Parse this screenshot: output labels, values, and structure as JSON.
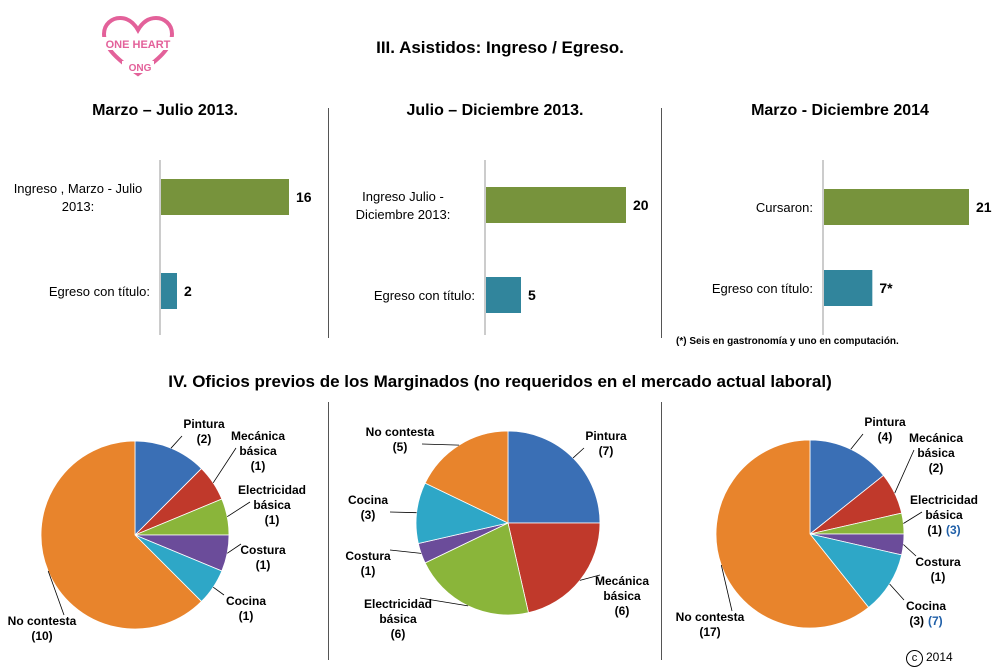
{
  "logo": {
    "line1": "ONE HEART",
    "line2": "ONG",
    "color": "#e3619a"
  },
  "section3_title": "III. Asistidos: Ingreso / Egreso.",
  "section4_title": "IV. Oficios previos de los Marginados (no requeridos en el mercado actual laboral)",
  "footnote": "(*) Seis en gastronomía y uno en computación.",
  "copyright": {
    "symbol": "c",
    "year": "2014"
  },
  "colors": {
    "green": "#77933c",
    "teal": "#31859c",
    "blue": "#3a6fb5",
    "red": "#c0392b",
    "olive": "#8ab53a",
    "purple": "#6b4c9a",
    "cyan": "#2ea7c7",
    "orange": "#e8842c",
    "highlight": "#1f5fa8"
  },
  "chart_data": [
    {
      "type": "bar",
      "orientation": "horizontal",
      "title": "Marzo – Julio  2013.",
      "categories": [
        "Ingreso , Marzo - Julio 2013:",
        "Egreso con título:"
      ],
      "values": [
        16,
        2
      ],
      "value_labels": [
        "16",
        "2"
      ],
      "xlim": [
        0,
        16
      ]
    },
    {
      "type": "bar",
      "orientation": "horizontal",
      "title": "Julio – Diciembre 2013.",
      "categories": [
        "Ingreso Julio - Diciembre 2013:",
        "Egreso con título:"
      ],
      "values": [
        20,
        5
      ],
      "value_labels": [
        "20",
        "5"
      ],
      "xlim": [
        0,
        20
      ]
    },
    {
      "type": "bar",
      "orientation": "horizontal",
      "title": "Marzo - Diciembre 2014",
      "categories": [
        "Cursaron:",
        "Egreso con título:"
      ],
      "values": [
        21,
        7
      ],
      "value_labels": [
        "21",
        "7*"
      ],
      "xlim": [
        0,
        21
      ]
    },
    {
      "type": "pie",
      "slices": [
        {
          "name": "Pintura",
          "value": 2,
          "label": "(2)"
        },
        {
          "name": "Mecánica básica",
          "value": 1,
          "label": "(1)"
        },
        {
          "name": "Electricidad básica",
          "value": 1,
          "label": "(1)"
        },
        {
          "name": "Costura",
          "value": 1,
          "label": "(1)"
        },
        {
          "name": "Cocina",
          "value": 1,
          "label": "(1)"
        },
        {
          "name": "No contesta",
          "value": 10,
          "label": "(10)"
        }
      ]
    },
    {
      "type": "pie",
      "slices": [
        {
          "name": "Pintura",
          "value": 7,
          "label": "(7)"
        },
        {
          "name": "Mecánica básica",
          "value": 6,
          "label": "(6)"
        },
        {
          "name": "Electricidad básica",
          "value": 6,
          "label": "(6)"
        },
        {
          "name": "Costura",
          "value": 1,
          "label": "(1)"
        },
        {
          "name": "Cocina",
          "value": 3,
          "label": "(3)"
        },
        {
          "name": "No contesta",
          "value": 5,
          "label": "(5)"
        }
      ]
    },
    {
      "type": "pie",
      "slices": [
        {
          "name": "Pintura",
          "value": 4,
          "label": "(4)"
        },
        {
          "name": "Mecánica básica",
          "value": 2,
          "label": "(2)"
        },
        {
          "name": "Electricidad básica",
          "value": 1,
          "label": "(1)",
          "extra": "(3)"
        },
        {
          "name": "Costura",
          "value": 1,
          "label": "(1)"
        },
        {
          "name": "Cocina",
          "value": 3,
          "label": "(3)",
          "extra": "(7)"
        },
        {
          "name": "No contesta",
          "value": 17,
          "label": "(17)"
        }
      ]
    }
  ]
}
